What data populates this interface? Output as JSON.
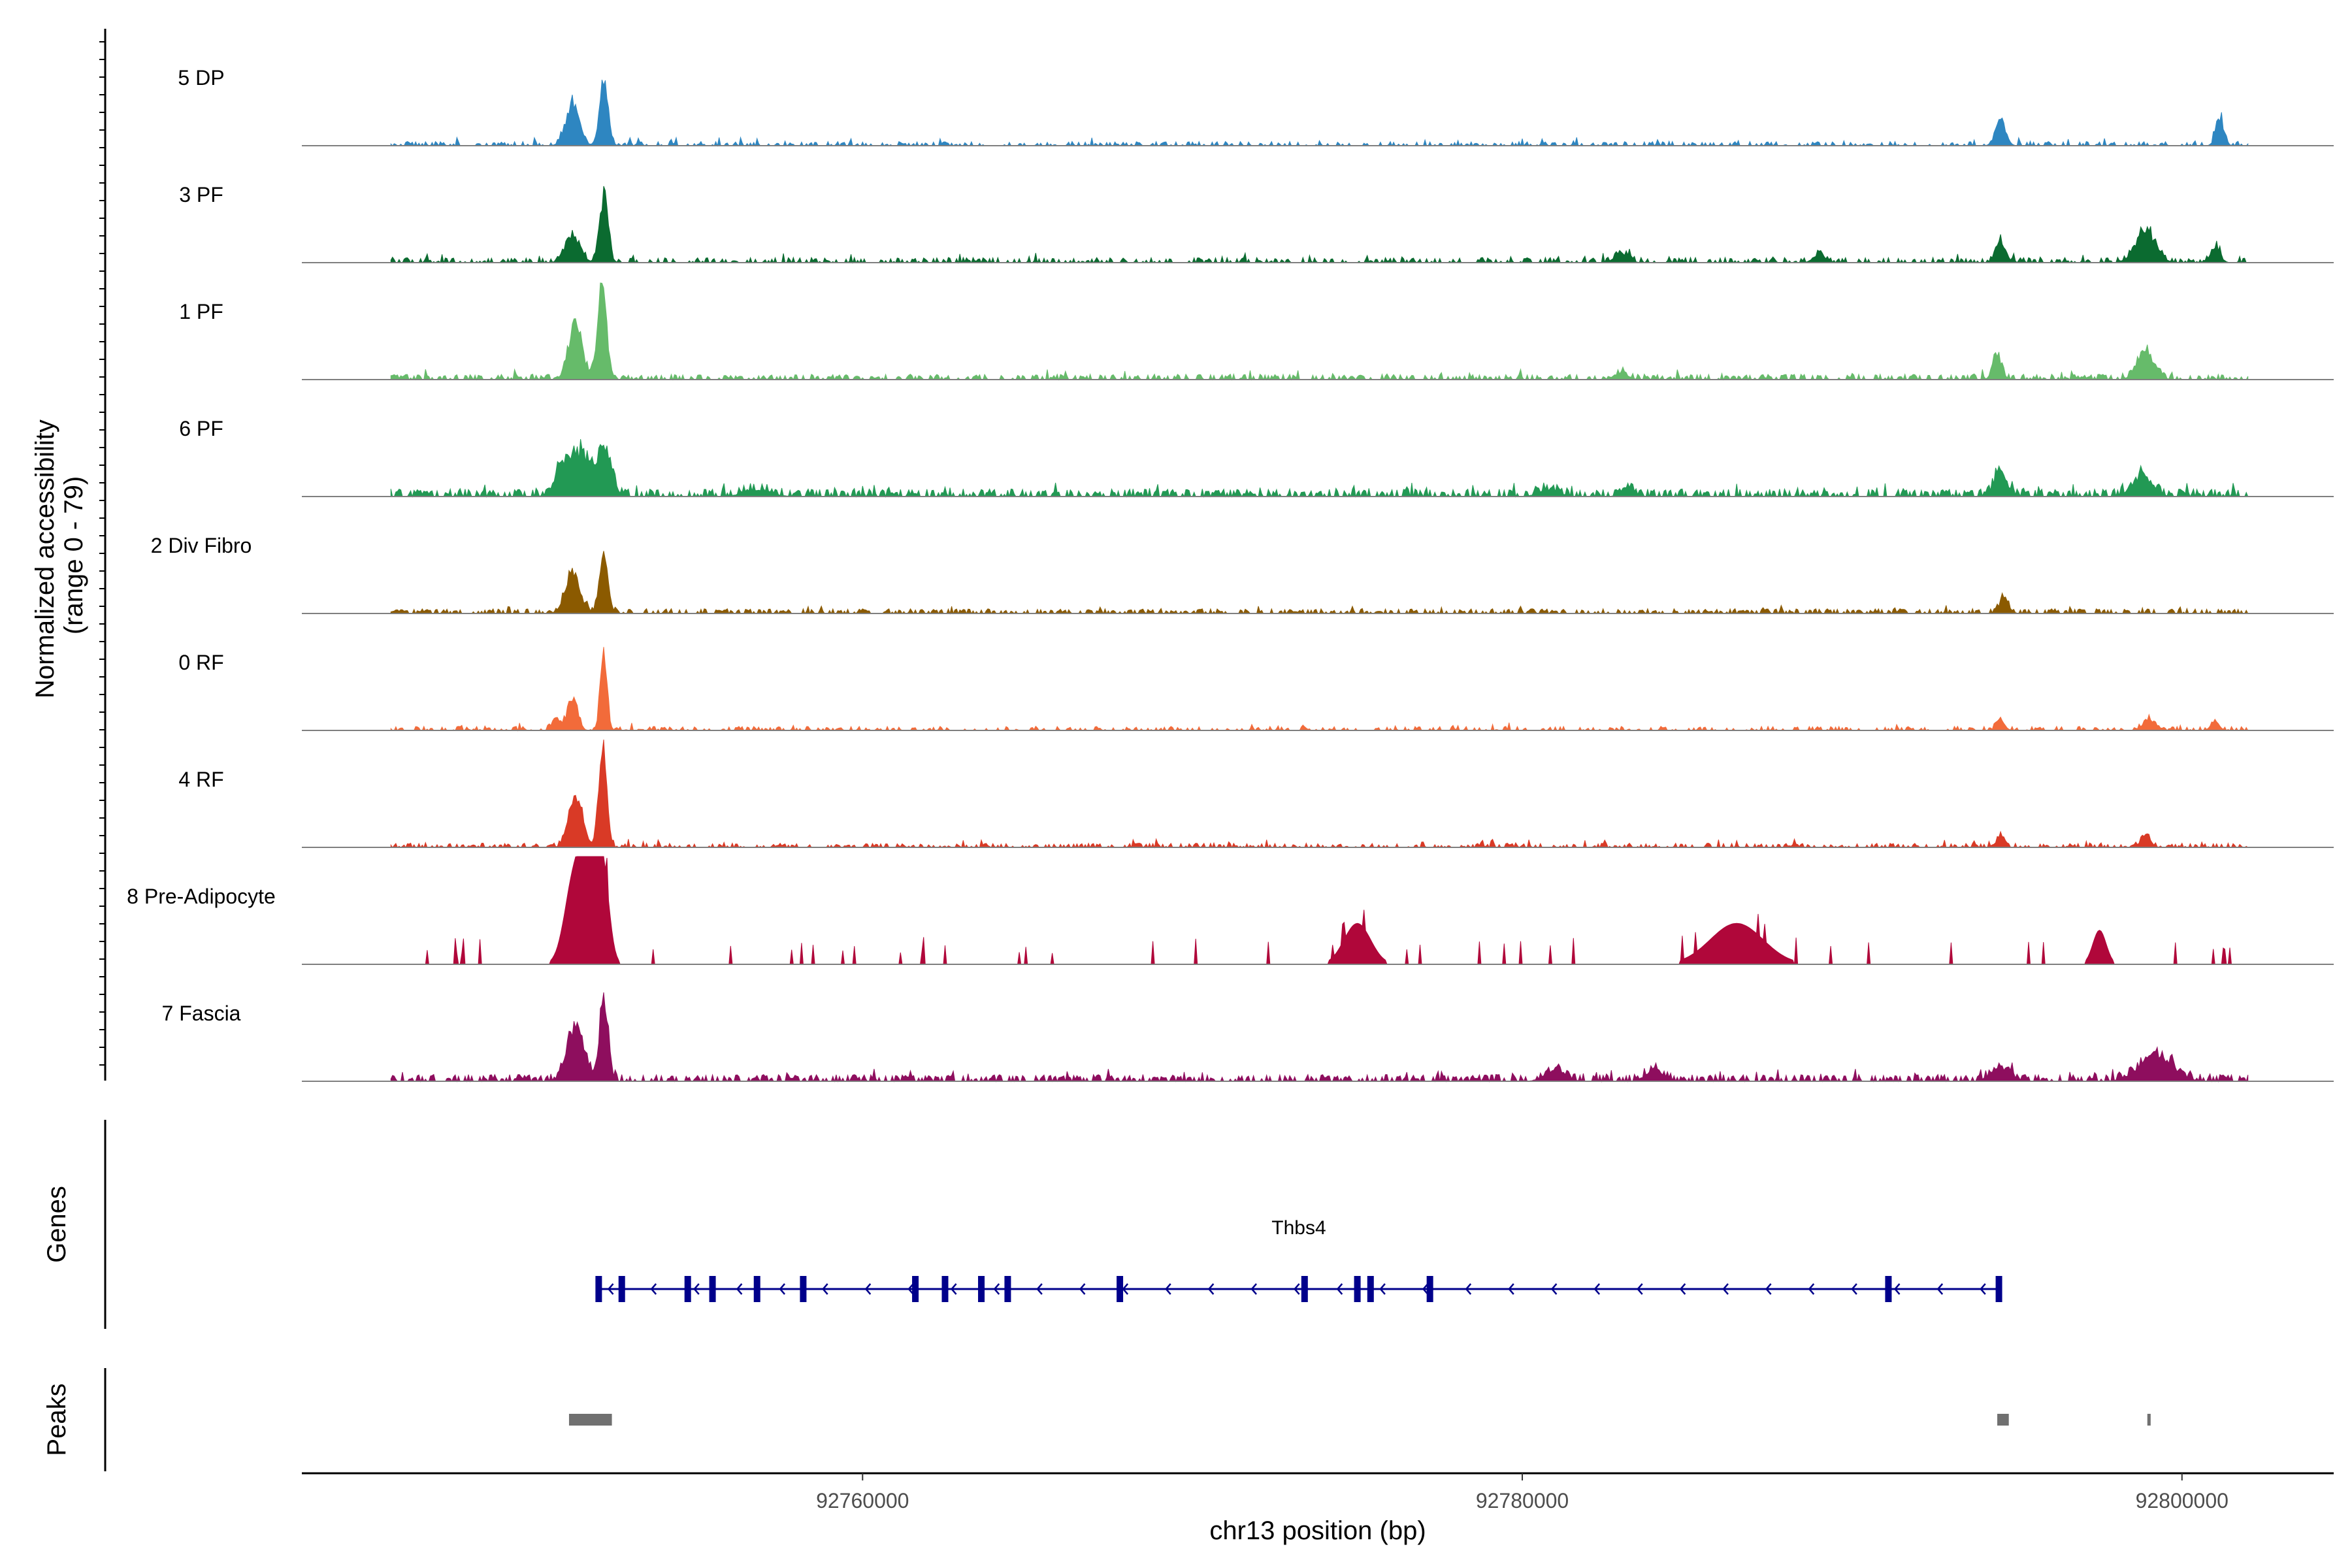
{
  "chart_data": {
    "type": "area",
    "x_axis": {
      "label": "chr13 position (bp)",
      "range": [
        92743000,
        92804600
      ],
      "ticks": [
        92760000,
        92780000,
        92800000
      ],
      "tick_labels": [
        "92760000",
        "92780000",
        "92800000"
      ]
    },
    "y_axis": {
      "label_line1": "Normalized accessibility",
      "label_line2": "(range 0 - 79)",
      "range": [
        0,
        79
      ]
    },
    "region_start": 92745700,
    "region_end": 92802000,
    "tracks": [
      {
        "name": "5 DP",
        "color": "#2E86C1",
        "baseline": 0.6,
        "noise": 2.5,
        "density": 0.42,
        "seed": 11,
        "peaks": [
          [
            92751200,
            200,
            36
          ],
          [
            92752150,
            130,
            54
          ],
          [
            92794500,
            150,
            22
          ],
          [
            92801150,
            120,
            24
          ]
        ]
      },
      {
        "name": "3 PF",
        "color": "#0B6B30",
        "baseline": 0.8,
        "noise": 3.0,
        "density": 0.45,
        "seed": 23,
        "peaks": [
          [
            92751200,
            220,
            24
          ],
          [
            92752150,
            130,
            58
          ],
          [
            92783000,
            200,
            8
          ],
          [
            92789000,
            180,
            7
          ],
          [
            92794500,
            150,
            18
          ],
          [
            92798900,
            300,
            28
          ],
          [
            92801000,
            150,
            12
          ]
        ]
      },
      {
        "name": "1 PF",
        "color": "#66BB6A",
        "baseline": 1.0,
        "noise": 3.0,
        "density": 0.5,
        "seed": 37,
        "peaks": [
          [
            92751300,
            200,
            48
          ],
          [
            92752100,
            140,
            79
          ],
          [
            92783000,
            200,
            6
          ],
          [
            92794400,
            130,
            22
          ],
          [
            92798900,
            250,
            24
          ]
        ]
      },
      {
        "name": "6 PF",
        "color": "#229954",
        "baseline": 1.6,
        "noise": 4.0,
        "density": 0.55,
        "seed": 41,
        "peaks": [
          [
            92750800,
            150,
            14
          ],
          [
            92751400,
            400,
            38
          ],
          [
            92752200,
            200,
            36
          ],
          [
            92756800,
            400,
            6
          ],
          [
            92780800,
            300,
            6
          ],
          [
            92783200,
            200,
            7
          ],
          [
            92794500,
            200,
            20
          ],
          [
            92798800,
            300,
            18
          ]
        ]
      },
      {
        "name": "2 Div Fibro",
        "color": "#8B5A00",
        "baseline": 1.0,
        "noise": 2.5,
        "density": 0.5,
        "seed": 53,
        "peaks": [
          [
            92751200,
            220,
            34
          ],
          [
            92752150,
            130,
            52
          ],
          [
            92794600,
            150,
            12
          ]
        ]
      },
      {
        "name": "0 RF",
        "color": "#F26B3A",
        "baseline": 0.5,
        "noise": 2.5,
        "density": 0.4,
        "seed": 67,
        "peaks": [
          [
            92751200,
            150,
            30
          ],
          [
            92752150,
            100,
            70
          ],
          [
            92750700,
            120,
            10
          ],
          [
            92794500,
            120,
            10
          ],
          [
            92799000,
            180,
            10
          ],
          [
            92801000,
            120,
            9
          ]
        ]
      },
      {
        "name": "4 RF",
        "color": "#D93A26",
        "baseline": 0.6,
        "noise": 2.5,
        "density": 0.45,
        "seed": 79,
        "peaks": [
          [
            92751300,
            200,
            48
          ],
          [
            92752150,
            110,
            72
          ],
          [
            92752000,
            100,
            20
          ],
          [
            92794500,
            120,
            10
          ],
          [
            92798900,
            150,
            10
          ]
        ]
      },
      {
        "name": "8 Pre-Adipocyte",
        "color": "#B0073A",
        "baseline": 0.0,
        "noise": 0.0,
        "density": 0.0,
        "seed": 83,
        "blocks": true,
        "peaks": [
          [
            92751300,
            300,
            70
          ],
          [
            92751700,
            200,
            65
          ],
          [
            92752100,
            200,
            75
          ],
          [
            92775000,
            400,
            30
          ],
          [
            92786500,
            800,
            30
          ],
          [
            92797500,
            200,
            25
          ]
        ]
      },
      {
        "name": "7 Fascia",
        "color": "#8E0E5E",
        "baseline": 1.5,
        "noise": 3.5,
        "density": 0.55,
        "seed": 97,
        "peaks": [
          [
            92751300,
            250,
            50
          ],
          [
            92752150,
            130,
            70
          ],
          [
            92781000,
            300,
            10
          ],
          [
            92784000,
            250,
            10
          ],
          [
            92794500,
            300,
            10
          ],
          [
            92799200,
            500,
            22
          ]
        ]
      }
    ],
    "gene": {
      "name": "Thbs4",
      "strand": "-",
      "color": "#00008B",
      "start": 92752000,
      "end": 92794450,
      "exons": [
        92752000,
        92752700,
        92754700,
        92755450,
        92756800,
        92758200,
        92761600,
        92762500,
        92763600,
        92764400,
        92767800,
        92773400,
        92775000,
        92775400,
        92777200,
        92791100,
        92794450
      ]
    },
    "peaks_track": {
      "color": "#707070",
      "regions": [
        [
          92751100,
          92752400
        ],
        [
          92794400,
          92794750
        ],
        [
          92798950,
          92799050
        ]
      ]
    },
    "panel_labels": [
      "Genes",
      "Peaks"
    ]
  }
}
